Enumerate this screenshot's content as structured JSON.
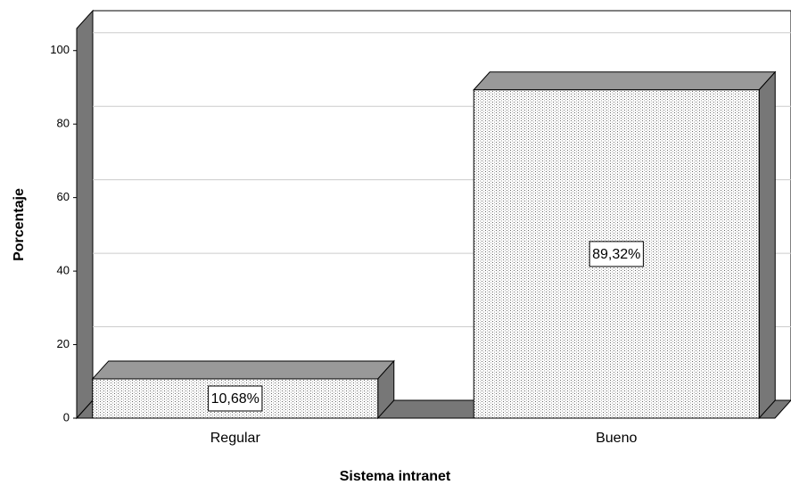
{
  "chart_data": {
    "type": "bar",
    "x_label": "Sistema intranet",
    "y_label": "Porcentaje",
    "categories": [
      "Regular",
      "Bueno"
    ],
    "values": [
      10.68,
      89.32
    ],
    "value_labels": [
      "10,68%",
      "89,32%"
    ],
    "ylim": [
      0,
      106
    ],
    "yticks": [
      0,
      20,
      40,
      60,
      80,
      100
    ],
    "grid": true
  }
}
